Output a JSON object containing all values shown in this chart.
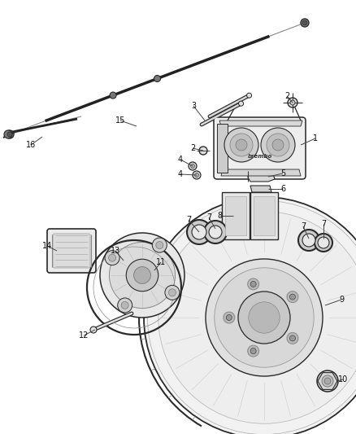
{
  "background_color": "#ffffff",
  "fig_width": 4.38,
  "fig_height": 5.33,
  "dpi": 100,
  "line_color": "#2a2a2a",
  "fill_light": "#f5f5f5",
  "fill_mid": "#e0e0e0",
  "fill_dark": "#c8c8c8"
}
